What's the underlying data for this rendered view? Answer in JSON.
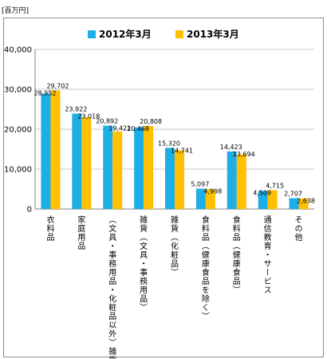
{
  "unit_label": "[百万円]",
  "chart_data": {
    "type": "bar",
    "title": "",
    "xlabel": "",
    "ylabel": "",
    "ylim": [
      0,
      40000
    ],
    "yticks": [
      0,
      10000,
      20000,
      30000,
      40000
    ],
    "ytick_labels": [
      "0",
      "10,000",
      "20,000",
      "30,000",
      "40,000"
    ],
    "grid": true,
    "legend": "top",
    "colors": [
      "#1eaee6",
      "#ffc000"
    ],
    "categories": [
      "衣料品",
      "家庭用品",
      "（文具・事務用品・化粧品以外）雑貨",
      "雑貨（文具・事務用品）",
      "雑貨（化粧品）",
      "食料品（健康食品を除く）",
      "食料品（健康食品）",
      "通信教育・サービス",
      "その他"
    ],
    "series": [
      {
        "name": "2012年3月",
        "values": [
          28952,
          23922,
          20892,
          20468,
          15320,
          5097,
          14423,
          4509,
          2707
        ],
        "labels": [
          "28,952",
          "23,922",
          "20,892",
          "20,468",
          "15,320",
          "5,097",
          "14,423",
          "4,509",
          "2,707"
        ]
      },
      {
        "name": "2013年3月",
        "values": [
          29702,
          23018,
          19421,
          20808,
          14741,
          4998,
          13694,
          4715,
          2638
        ],
        "labels": [
          "29,702",
          "23,018",
          "19,421",
          "20,808",
          "14,741",
          "4,998",
          "13,694",
          "4,715",
          "2,638"
        ]
      }
    ]
  }
}
